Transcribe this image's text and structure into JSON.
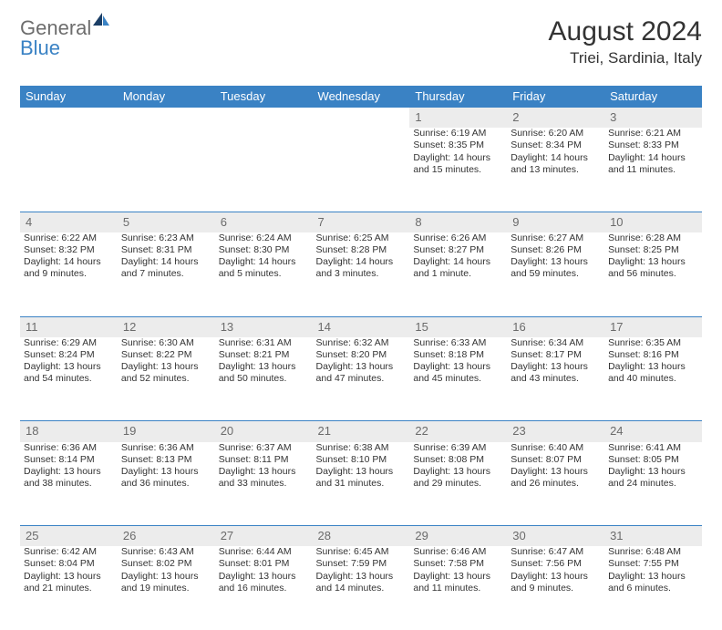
{
  "brand": {
    "part1": "General",
    "part2": "Blue"
  },
  "title": "August 2024",
  "subtitle": "Triei, Sardinia, Italy",
  "header_color": "#3a82c4",
  "daynum_bg": "#ececec",
  "text_color": "#333333",
  "day_headers": [
    "Sunday",
    "Monday",
    "Tuesday",
    "Wednesday",
    "Thursday",
    "Friday",
    "Saturday"
  ],
  "weeks": [
    {
      "nums": [
        "",
        "",
        "",
        "",
        "1",
        "2",
        "3"
      ],
      "cells": [
        {
          "lines": []
        },
        {
          "lines": []
        },
        {
          "lines": []
        },
        {
          "lines": []
        },
        {
          "lines": [
            "Sunrise: 6:19 AM",
            "Sunset: 8:35 PM",
            "Daylight: 14 hours",
            "and 15 minutes."
          ]
        },
        {
          "lines": [
            "Sunrise: 6:20 AM",
            "Sunset: 8:34 PM",
            "Daylight: 14 hours",
            "and 13 minutes."
          ]
        },
        {
          "lines": [
            "Sunrise: 6:21 AM",
            "Sunset: 8:33 PM",
            "Daylight: 14 hours",
            "and 11 minutes."
          ]
        }
      ]
    },
    {
      "nums": [
        "4",
        "5",
        "6",
        "7",
        "8",
        "9",
        "10"
      ],
      "cells": [
        {
          "lines": [
            "Sunrise: 6:22 AM",
            "Sunset: 8:32 PM",
            "Daylight: 14 hours",
            "and 9 minutes."
          ]
        },
        {
          "lines": [
            "Sunrise: 6:23 AM",
            "Sunset: 8:31 PM",
            "Daylight: 14 hours",
            "and 7 minutes."
          ]
        },
        {
          "lines": [
            "Sunrise: 6:24 AM",
            "Sunset: 8:30 PM",
            "Daylight: 14 hours",
            "and 5 minutes."
          ]
        },
        {
          "lines": [
            "Sunrise: 6:25 AM",
            "Sunset: 8:28 PM",
            "Daylight: 14 hours",
            "and 3 minutes."
          ]
        },
        {
          "lines": [
            "Sunrise: 6:26 AM",
            "Sunset: 8:27 PM",
            "Daylight: 14 hours",
            "and 1 minute."
          ]
        },
        {
          "lines": [
            "Sunrise: 6:27 AM",
            "Sunset: 8:26 PM",
            "Daylight: 13 hours",
            "and 59 minutes."
          ]
        },
        {
          "lines": [
            "Sunrise: 6:28 AM",
            "Sunset: 8:25 PM",
            "Daylight: 13 hours",
            "and 56 minutes."
          ]
        }
      ]
    },
    {
      "nums": [
        "11",
        "12",
        "13",
        "14",
        "15",
        "16",
        "17"
      ],
      "cells": [
        {
          "lines": [
            "Sunrise: 6:29 AM",
            "Sunset: 8:24 PM",
            "Daylight: 13 hours",
            "and 54 minutes."
          ]
        },
        {
          "lines": [
            "Sunrise: 6:30 AM",
            "Sunset: 8:22 PM",
            "Daylight: 13 hours",
            "and 52 minutes."
          ]
        },
        {
          "lines": [
            "Sunrise: 6:31 AM",
            "Sunset: 8:21 PM",
            "Daylight: 13 hours",
            "and 50 minutes."
          ]
        },
        {
          "lines": [
            "Sunrise: 6:32 AM",
            "Sunset: 8:20 PM",
            "Daylight: 13 hours",
            "and 47 minutes."
          ]
        },
        {
          "lines": [
            "Sunrise: 6:33 AM",
            "Sunset: 8:18 PM",
            "Daylight: 13 hours",
            "and 45 minutes."
          ]
        },
        {
          "lines": [
            "Sunrise: 6:34 AM",
            "Sunset: 8:17 PM",
            "Daylight: 13 hours",
            "and 43 minutes."
          ]
        },
        {
          "lines": [
            "Sunrise: 6:35 AM",
            "Sunset: 8:16 PM",
            "Daylight: 13 hours",
            "and 40 minutes."
          ]
        }
      ]
    },
    {
      "nums": [
        "18",
        "19",
        "20",
        "21",
        "22",
        "23",
        "24"
      ],
      "cells": [
        {
          "lines": [
            "Sunrise: 6:36 AM",
            "Sunset: 8:14 PM",
            "Daylight: 13 hours",
            "and 38 minutes."
          ]
        },
        {
          "lines": [
            "Sunrise: 6:36 AM",
            "Sunset: 8:13 PM",
            "Daylight: 13 hours",
            "and 36 minutes."
          ]
        },
        {
          "lines": [
            "Sunrise: 6:37 AM",
            "Sunset: 8:11 PM",
            "Daylight: 13 hours",
            "and 33 minutes."
          ]
        },
        {
          "lines": [
            "Sunrise: 6:38 AM",
            "Sunset: 8:10 PM",
            "Daylight: 13 hours",
            "and 31 minutes."
          ]
        },
        {
          "lines": [
            "Sunrise: 6:39 AM",
            "Sunset: 8:08 PM",
            "Daylight: 13 hours",
            "and 29 minutes."
          ]
        },
        {
          "lines": [
            "Sunrise: 6:40 AM",
            "Sunset: 8:07 PM",
            "Daylight: 13 hours",
            "and 26 minutes."
          ]
        },
        {
          "lines": [
            "Sunrise: 6:41 AM",
            "Sunset: 8:05 PM",
            "Daylight: 13 hours",
            "and 24 minutes."
          ]
        }
      ]
    },
    {
      "nums": [
        "25",
        "26",
        "27",
        "28",
        "29",
        "30",
        "31"
      ],
      "cells": [
        {
          "lines": [
            "Sunrise: 6:42 AM",
            "Sunset: 8:04 PM",
            "Daylight: 13 hours",
            "and 21 minutes."
          ]
        },
        {
          "lines": [
            "Sunrise: 6:43 AM",
            "Sunset: 8:02 PM",
            "Daylight: 13 hours",
            "and 19 minutes."
          ]
        },
        {
          "lines": [
            "Sunrise: 6:44 AM",
            "Sunset: 8:01 PM",
            "Daylight: 13 hours",
            "and 16 minutes."
          ]
        },
        {
          "lines": [
            "Sunrise: 6:45 AM",
            "Sunset: 7:59 PM",
            "Daylight: 13 hours",
            "and 14 minutes."
          ]
        },
        {
          "lines": [
            "Sunrise: 6:46 AM",
            "Sunset: 7:58 PM",
            "Daylight: 13 hours",
            "and 11 minutes."
          ]
        },
        {
          "lines": [
            "Sunrise: 6:47 AM",
            "Sunset: 7:56 PM",
            "Daylight: 13 hours",
            "and 9 minutes."
          ]
        },
        {
          "lines": [
            "Sunrise: 6:48 AM",
            "Sunset: 7:55 PM",
            "Daylight: 13 hours",
            "and 6 minutes."
          ]
        }
      ]
    }
  ]
}
